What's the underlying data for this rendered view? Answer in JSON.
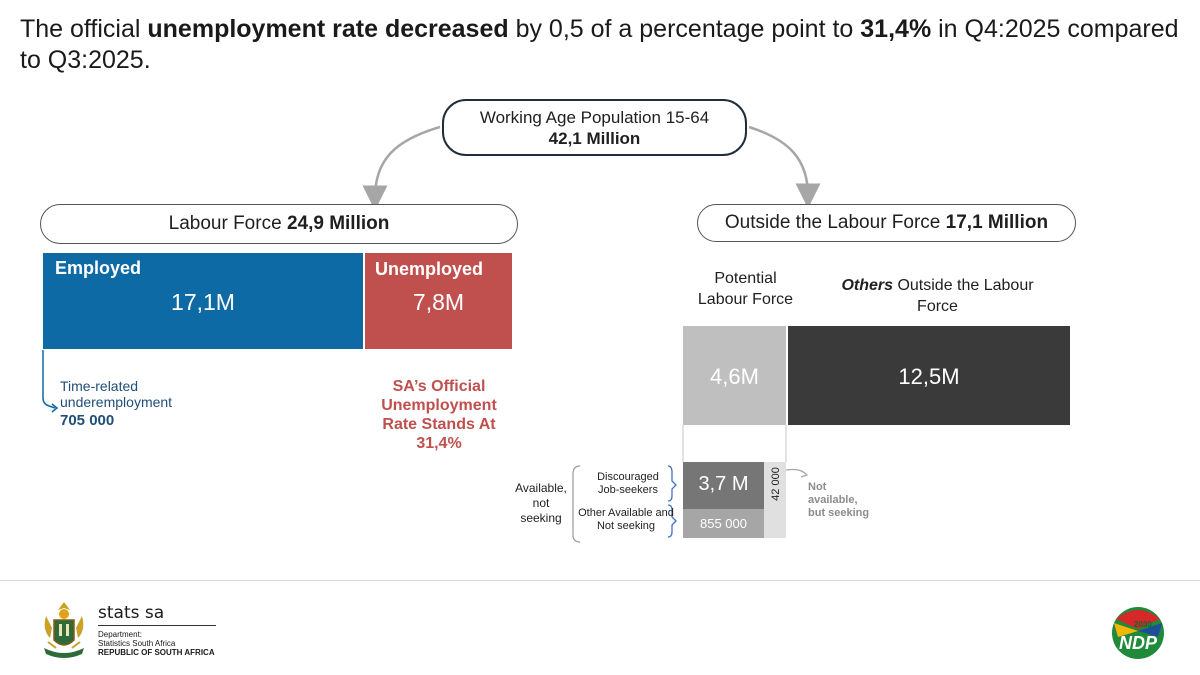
{
  "headline": {
    "part1": "The official ",
    "bold1": "unemployment rate decreased",
    "part2": " by 0,5 of a percentage point to ",
    "bold2": "31,4%",
    "part3": " in Q4:2025 compared to Q3:2025."
  },
  "working_age": {
    "label": "Working Age Population 15-64",
    "value": "42,1 Million"
  },
  "labour_force": {
    "label": "Labour Force ",
    "value": "24,9 Million",
    "employed": {
      "title": "Employed",
      "value": "17,1M",
      "color": "#0e6aa5"
    },
    "unemployed": {
      "title": "Unemployed",
      "value": "7,8M",
      "color": "#c0504d"
    },
    "time_related": {
      "label_line1": "Time-related",
      "label_line2": "underemployment",
      "value": "705 000"
    },
    "official_rate": {
      "line1": "SA’s Official",
      "line2": "Unemployment",
      "line3": "Rate Stands At",
      "line4": "31,4%"
    }
  },
  "outside_labour_force": {
    "label": "Outside the Labour Force ",
    "value": "17,1 Million",
    "potential": {
      "line1": "Potential",
      "line2": "Labour Force",
      "value": "4,6M",
      "color": "#bfbfbf"
    },
    "others": {
      "bold": "Others",
      "rest_line1": " Outside the Labour",
      "line2": "Force",
      "value": "12,5M",
      "color": "#3a3a3a"
    },
    "breakdown": {
      "available_label_line1": "Available,",
      "available_label_line2": "not",
      "available_label_line3": "seeking",
      "discouraged_label_line1": "Discouraged",
      "discouraged_label_line2": "Job-seekers",
      "discouraged_value": "3,7 M",
      "other_label_line1": "Other Available and",
      "other_label_line2": "Not seeking",
      "other_value": "855 000",
      "not_available_value": "42 000",
      "not_available_label_line1": "Not",
      "not_available_label_line2": "available,",
      "not_available_label_line3": "but seeking"
    }
  },
  "footer": {
    "org_name": "stats sa",
    "dept_line1": "Department:",
    "dept_line2": "Statistics South Africa",
    "dept_line3": "REPUBLIC OF SOUTH AFRICA",
    "ndp_text": "NDP",
    "ndp_year": "2030",
    "left_logo_icon": "coat-of-arms-icon",
    "right_logo_icon": "ndp-2030-logo-icon"
  }
}
